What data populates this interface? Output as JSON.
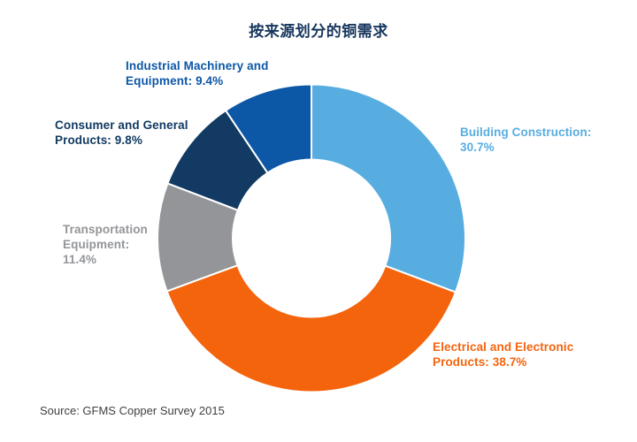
{
  "page": {
    "background_color": "#ffffff"
  },
  "chart_data": {
    "type": "pie",
    "variant": "donut",
    "title": "按来源划分的铜需求",
    "title_color": "#17365D",
    "source_note": "Source: GFMS Copper Survey 2015",
    "source_note_color": "#414042",
    "direction": "clockwise",
    "start_angle_deg": 0,
    "inner_radius_ratio": 0.51,
    "separator_color": "#ffffff",
    "total": 100,
    "series": [
      {
        "name": "Building Construction",
        "value": 30.7,
        "color": "#58ADE0",
        "label": "Building Construction:\n30.7%"
      },
      {
        "name": "Electrical and Electronic Products",
        "value": 38.7,
        "color": "#F4640D",
        "label": "Electrical and Electronic\nProducts: 38.7%"
      },
      {
        "name": "Transportation Equipment",
        "value": 11.4,
        "color": "#939598",
        "label": "Transportation\nEquipment:\n11.4%"
      },
      {
        "name": "Consumer and General Products",
        "value": 9.8,
        "color": "#123A63",
        "label": "Consumer and General\nProducts: 9.8%"
      },
      {
        "name": "Industrial Machinery and Equipment",
        "value": 9.4,
        "color": "#0D57A7",
        "label": "Industrial Machinery and\nEquipment: 9.4%"
      }
    ]
  }
}
